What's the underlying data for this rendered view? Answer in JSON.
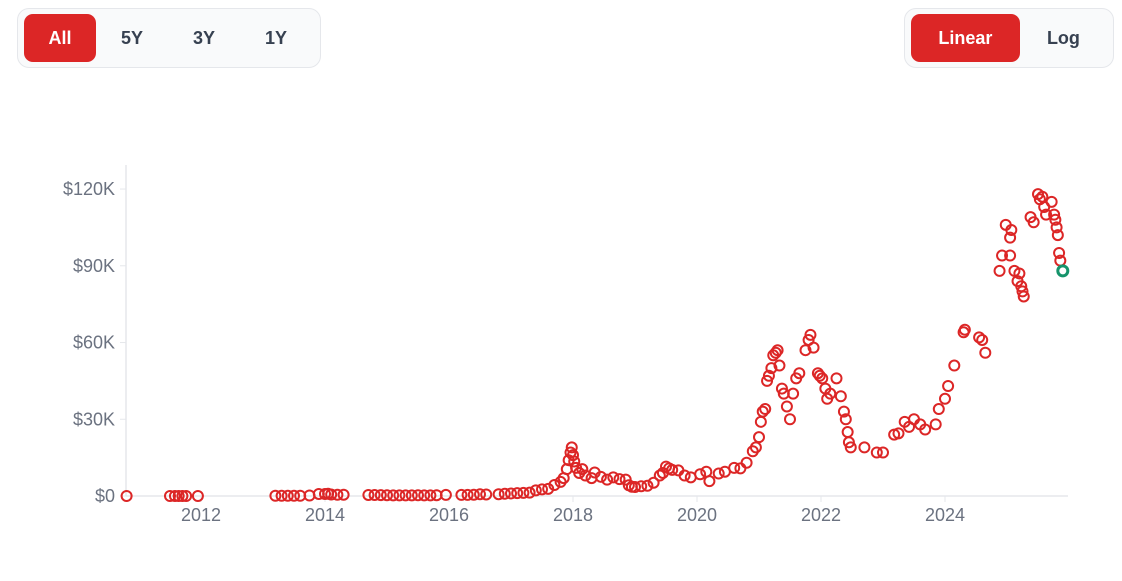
{
  "range_buttons": [
    {
      "label": "All",
      "active": true
    },
    {
      "label": "5Y",
      "active": false
    },
    {
      "label": "3Y",
      "active": false
    },
    {
      "label": "1Y",
      "active": false
    }
  ],
  "scale_buttons": [
    {
      "label": "Linear",
      "active": true
    },
    {
      "label": "Log",
      "active": false
    }
  ],
  "colors": {
    "accent": "#dc2626",
    "point": "#dc2626",
    "latest_point": "#16946b",
    "axis": "#e5e7eb",
    "text": "#6b7280"
  },
  "chart_data": {
    "type": "scatter",
    "title": "",
    "xlabel": "",
    "ylabel": "",
    "xlim": [
      2010.79,
      2025.95
    ],
    "ylim": [
      0,
      130
    ],
    "y_unit": "thousand USD",
    "y_ticks": [
      {
        "value": 0,
        "label": "$0"
      },
      {
        "value": 30,
        "label": "$30K"
      },
      {
        "value": 60,
        "label": "$60K"
      },
      {
        "value": 90,
        "label": "$90K"
      },
      {
        "value": 120,
        "label": "$120K"
      }
    ],
    "x_ticks": [
      {
        "value": 2012,
        "label": "2012"
      },
      {
        "value": 2014,
        "label": "2014"
      },
      {
        "value": 2016,
        "label": "2016"
      },
      {
        "value": 2018,
        "label": "2018"
      },
      {
        "value": 2020,
        "label": "2020"
      },
      {
        "value": 2022,
        "label": "2022"
      },
      {
        "value": 2024,
        "label": "2024"
      }
    ],
    "grid": false,
    "series": [
      {
        "name": "price",
        "points": [
          [
            2010.8,
            0
          ],
          [
            2011.5,
            0
          ],
          [
            2011.58,
            0
          ],
          [
            2011.64,
            0
          ],
          [
            2011.7,
            0
          ],
          [
            2011.76,
            0
          ],
          [
            2011.95,
            0
          ],
          [
            2013.2,
            0.1
          ],
          [
            2013.3,
            0.1
          ],
          [
            2013.4,
            0.1
          ],
          [
            2013.5,
            0.1
          ],
          [
            2013.6,
            0.1
          ],
          [
            2013.75,
            0.2
          ],
          [
            2013.9,
            0.8
          ],
          [
            2014.0,
            0.8
          ],
          [
            2014.05,
            0.9
          ],
          [
            2014.1,
            0.6
          ],
          [
            2014.2,
            0.5
          ],
          [
            2014.3,
            0.5
          ],
          [
            2014.7,
            0.4
          ],
          [
            2014.8,
            0.4
          ],
          [
            2014.9,
            0.35
          ],
          [
            2015.0,
            0.3
          ],
          [
            2015.1,
            0.25
          ],
          [
            2015.2,
            0.25
          ],
          [
            2015.3,
            0.24
          ],
          [
            2015.4,
            0.23
          ],
          [
            2015.5,
            0.27
          ],
          [
            2015.6,
            0.25
          ],
          [
            2015.7,
            0.24
          ],
          [
            2015.8,
            0.3
          ],
          [
            2015.95,
            0.43
          ],
          [
            2016.2,
            0.42
          ],
          [
            2016.3,
            0.44
          ],
          [
            2016.4,
            0.5
          ],
          [
            2016.5,
            0.66
          ],
          [
            2016.6,
            0.6
          ],
          [
            2016.8,
            0.7
          ],
          [
            2016.9,
            0.9
          ],
          [
            2017.0,
            1.0
          ],
          [
            2017.1,
            1.1
          ],
          [
            2017.2,
            1.2
          ],
          [
            2017.3,
            1.3
          ],
          [
            2017.4,
            2.2
          ],
          [
            2017.5,
            2.6
          ],
          [
            2017.6,
            2.8
          ],
          [
            2017.7,
            4.3
          ],
          [
            2017.8,
            5.5
          ],
          [
            2017.85,
            7.0
          ],
          [
            2017.9,
            10.5
          ],
          [
            2017.93,
            14
          ],
          [
            2017.96,
            17
          ],
          [
            2017.98,
            19
          ],
          [
            2018.0,
            16
          ],
          [
            2018.02,
            13.5
          ],
          [
            2018.05,
            11
          ],
          [
            2018.1,
            9
          ],
          [
            2018.15,
            10.5
          ],
          [
            2018.2,
            8
          ],
          [
            2018.3,
            7
          ],
          [
            2018.35,
            9.2
          ],
          [
            2018.45,
            7.5
          ],
          [
            2018.55,
            6.4
          ],
          [
            2018.65,
            7.3
          ],
          [
            2018.75,
            6.6
          ],
          [
            2018.85,
            6.4
          ],
          [
            2018.9,
            4.2
          ],
          [
            2018.95,
            3.6
          ],
          [
            2019.0,
            3.5
          ],
          [
            2019.1,
            3.8
          ],
          [
            2019.2,
            4.0
          ],
          [
            2019.3,
            5.2
          ],
          [
            2019.4,
            8
          ],
          [
            2019.45,
            9
          ],
          [
            2019.5,
            11.5
          ],
          [
            2019.55,
            10.8
          ],
          [
            2019.6,
            10.2
          ],
          [
            2019.7,
            10
          ],
          [
            2019.8,
            8
          ],
          [
            2019.9,
            7.3
          ],
          [
            2020.05,
            8.5
          ],
          [
            2020.15,
            9.5
          ],
          [
            2020.2,
            5.8
          ],
          [
            2020.35,
            8.8
          ],
          [
            2020.45,
            9.5
          ],
          [
            2020.6,
            11
          ],
          [
            2020.7,
            10.8
          ],
          [
            2020.8,
            13
          ],
          [
            2020.9,
            17.5
          ],
          [
            2020.95,
            19
          ],
          [
            2021.0,
            23
          ],
          [
            2021.03,
            29
          ],
          [
            2021.06,
            33
          ],
          [
            2021.1,
            34
          ],
          [
            2021.13,
            45
          ],
          [
            2021.16,
            47
          ],
          [
            2021.2,
            50
          ],
          [
            2021.23,
            55
          ],
          [
            2021.27,
            56
          ],
          [
            2021.3,
            57
          ],
          [
            2021.33,
            51
          ],
          [
            2021.37,
            42
          ],
          [
            2021.4,
            40
          ],
          [
            2021.45,
            35
          ],
          [
            2021.5,
            30
          ],
          [
            2021.55,
            40
          ],
          [
            2021.6,
            46
          ],
          [
            2021.65,
            48
          ],
          [
            2021.75,
            57
          ],
          [
            2021.8,
            61
          ],
          [
            2021.83,
            63
          ],
          [
            2021.88,
            58
          ],
          [
            2021.95,
            48
          ],
          [
            2021.98,
            47
          ],
          [
            2022.02,
            46
          ],
          [
            2022.07,
            42
          ],
          [
            2022.1,
            38
          ],
          [
            2022.15,
            40
          ],
          [
            2022.25,
            46
          ],
          [
            2022.32,
            39
          ],
          [
            2022.37,
            33
          ],
          [
            2022.4,
            30
          ],
          [
            2022.43,
            25
          ],
          [
            2022.45,
            21
          ],
          [
            2022.48,
            19
          ],
          [
            2022.7,
            19
          ],
          [
            2022.9,
            17
          ],
          [
            2023.0,
            17
          ],
          [
            2023.18,
            24
          ],
          [
            2023.25,
            24.5
          ],
          [
            2023.35,
            29
          ],
          [
            2023.42,
            27
          ],
          [
            2023.5,
            30
          ],
          [
            2023.6,
            28
          ],
          [
            2023.68,
            26
          ],
          [
            2023.85,
            28
          ],
          [
            2023.9,
            34
          ],
          [
            2024.0,
            38
          ],
          [
            2024.05,
            43
          ],
          [
            2024.15,
            51
          ],
          [
            2024.3,
            64
          ],
          [
            2024.32,
            65
          ],
          [
            2024.55,
            62
          ],
          [
            2024.6,
            61
          ],
          [
            2024.65,
            56
          ],
          [
            2024.88,
            88
          ],
          [
            2024.92,
            94
          ],
          [
            2024.98,
            106
          ],
          [
            2025.05,
            101
          ],
          [
            2025.07,
            104
          ],
          [
            2025.05,
            94
          ],
          [
            2025.12,
            88
          ],
          [
            2025.17,
            84
          ],
          [
            2025.2,
            87
          ],
          [
            2025.23,
            82
          ],
          [
            2025.25,
            80
          ],
          [
            2025.27,
            78
          ],
          [
            2025.38,
            109
          ],
          [
            2025.43,
            107
          ],
          [
            2025.5,
            118
          ],
          [
            2025.53,
            116
          ],
          [
            2025.57,
            117
          ],
          [
            2025.6,
            113
          ],
          [
            2025.63,
            110
          ],
          [
            2025.72,
            115
          ],
          [
            2025.76,
            110
          ],
          [
            2025.78,
            108
          ],
          [
            2025.8,
            105
          ],
          [
            2025.82,
            102
          ],
          [
            2025.84,
            95
          ],
          [
            2025.86,
            92
          ]
        ]
      }
    ],
    "latest_point": [
      2025.9,
      88
    ]
  }
}
